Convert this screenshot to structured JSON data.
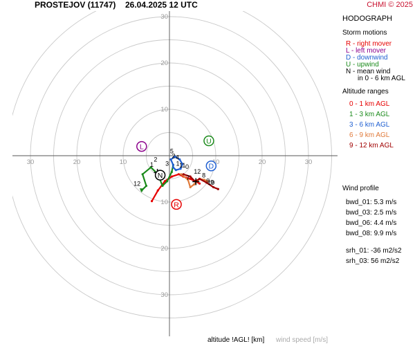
{
  "header": {
    "station": "PROSTEJOV (11747)",
    "datetime": "26.04.2025 12 UTC",
    "copyright": "CHMI © 2025"
  },
  "panel": {
    "title": "HODOGRAPH",
    "storm_motions": {
      "title": "Storm motions",
      "items": [
        {
          "label": "R - right mover",
          "color": "#e60000"
        },
        {
          "label": "L - left mover",
          "color": "#8b008b"
        },
        {
          "label": "D - downwind",
          "color": "#1f5fd1"
        },
        {
          "label": "U - upwind",
          "color": "#1a8a1a"
        },
        {
          "label": "N - mean wind",
          "color": "#000000"
        }
      ],
      "note": "in 0 - 6 km AGL"
    },
    "altitude_ranges": {
      "title": "Altitude ranges",
      "items": [
        {
          "label": "0 - 1 km AGL",
          "color": "#e60000"
        },
        {
          "label": "1 - 3 km AGL",
          "color": "#1a8a1a"
        },
        {
          "label": "3 - 6 km AGL",
          "color": "#1f5fd1"
        },
        {
          "label": "6 - 9 km AGL",
          "color": "#e07a3a"
        },
        {
          "label": "9 - 12 km AGL",
          "color": "#a00000"
        }
      ]
    },
    "wind_profile": {
      "title": "Wind profile",
      "items": [
        "bwd_01: 5.3 m/s",
        "bwd_03: 2.5 m/s",
        "bwd_06: 4.4 m/s",
        "bwd_08: 9.9 m/s",
        "srh_01: -36 m2/s2",
        "srh_03: 56 m2/s2"
      ]
    }
  },
  "footer": {
    "altitude_label": "altitude !AGL! [km]",
    "wind_speed_label": "wind speed [m/s]"
  },
  "chart_data": {
    "type": "scatter",
    "title": "HODOGRAPH",
    "rings": [
      5,
      10,
      15,
      20,
      25,
      30,
      35
    ],
    "tick_labels": {
      "right": [
        "10",
        "20",
        "30"
      ],
      "left": [
        "10",
        "20",
        "30"
      ],
      "up": [
        "10",
        "20",
        "30"
      ],
      "down": [
        "10",
        "20",
        "30"
      ]
    },
    "xlim": [
      -35,
      35
    ],
    "ylim": [
      -35,
      30
    ],
    "storm_motions": [
      {
        "label": "R",
        "u": 1.5,
        "v": -10.5,
        "color": "#e60000"
      },
      {
        "label": "L",
        "u": -6.0,
        "v": 2.0,
        "color": "#8b008b"
      },
      {
        "label": "D",
        "u": 9.0,
        "v": -2.2,
        "color": "#1f5fd1"
      },
      {
        "label": "U",
        "u": 8.5,
        "v": 3.2,
        "color": "#1a8a1a"
      },
      {
        "label": "N",
        "u": -2.0,
        "v": -4.2,
        "color": "#000000"
      }
    ],
    "series": [
      {
        "name": "0 - 1 km AGL",
        "color": "#e60000",
        "points": [
          [
            -3.8,
            -9.8
          ],
          [
            -2.5,
            -7.5
          ],
          [
            -1.0,
            -5.5
          ],
          [
            0.5,
            -4.5
          ],
          [
            2.0,
            -4.0
          ],
          [
            3.0,
            -4.5
          ],
          [
            4.5,
            -5.0
          ],
          [
            5.5,
            -5.5
          ],
          [
            6.5,
            -6.0
          ]
        ]
      },
      {
        "name": "1 - 3 km AGL",
        "color": "#1a8a1a",
        "points": [
          [
            -6.0,
            -7.5
          ],
          [
            -5.0,
            -6.5
          ],
          [
            -5.8,
            -4.0
          ],
          [
            -4.0,
            -2.5
          ],
          [
            -2.5,
            -4.0
          ],
          [
            -1.5,
            -6.5
          ],
          [
            -0.5,
            -5.5
          ],
          [
            0.5,
            -3.5
          ],
          [
            0.8,
            -2.0
          ]
        ]
      },
      {
        "name": "3 - 6 km AGL",
        "color": "#1f5fd1",
        "points": [
          [
            0.8,
            -2.0
          ],
          [
            0.3,
            -0.8
          ],
          [
            1.2,
            -0.2
          ],
          [
            2.2,
            -0.8
          ],
          [
            2.8,
            -1.8
          ],
          [
            2.4,
            -2.8
          ],
          [
            1.4,
            -3.1
          ],
          [
            0.8,
            -2.5
          ]
        ]
      },
      {
        "name": "6 - 9 km AGL",
        "color": "#e07a3a",
        "points": [
          [
            2.5,
            -4.0
          ],
          [
            4.0,
            -5.2
          ],
          [
            4.5,
            -6.8
          ],
          [
            5.3,
            -6.2
          ],
          [
            6.5,
            -5.0
          ],
          [
            7.5,
            -5.2
          ],
          [
            8.2,
            -5.5
          ]
        ]
      },
      {
        "name": "9 - 12 km AGL",
        "color": "#a00000",
        "points": [
          [
            3.0,
            -4.0
          ],
          [
            4.5,
            -4.5
          ],
          [
            5.5,
            -5.5
          ],
          [
            6.5,
            -5.0
          ],
          [
            8.0,
            -5.8
          ],
          [
            9.5,
            -6.8
          ],
          [
            10.5,
            -7.2
          ]
        ]
      }
    ],
    "altitude_labels": [
      {
        "text": "5",
        "u": 0.5,
        "v": 0.5
      },
      {
        "text": "2",
        "u": 0.9,
        "v": -0.5
      },
      {
        "text": "4",
        "u": 1.7,
        "v": -0.8
      },
      {
        "text": "3",
        "u": -0.5,
        "v": -2.2
      },
      {
        "text": "1",
        "u": 1.8,
        "v": -2.2
      },
      {
        "text": "11",
        "u": 2.8,
        "v": -2.5
      },
      {
        "text": "0",
        "u": 3.8,
        "v": -2.8
      },
      {
        "text": "2",
        "u": -3.0,
        "v": -1.3
      },
      {
        "text": "1",
        "u": -3.8,
        "v": -2.4
      },
      {
        "text": "12",
        "u": -7.0,
        "v": -6.5
      },
      {
        "text": "12",
        "u": 6.0,
        "v": -3.9
      },
      {
        "text": "8",
        "u": 7.4,
        "v": -4.7
      },
      {
        "text": "7",
        "u": 4.0,
        "v": -5.2
      },
      {
        "text": "9",
        "u": 8.3,
        "v": -5.9
      },
      {
        "text": "10",
        "u": 9.0,
        "v": -6.3
      },
      {
        "text": "9",
        "u": 9.2,
        "v": -6.2
      }
    ]
  }
}
